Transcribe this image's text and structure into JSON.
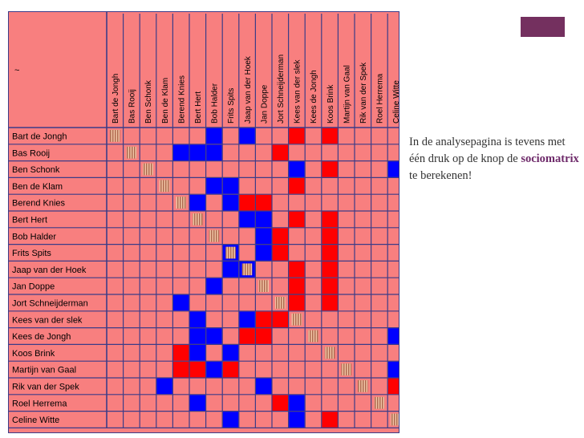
{
  "corner_label": "~",
  "students": [
    "Bart de Jongh",
    "Bas Rooij",
    "Ben Schonk",
    "Ben de Klam",
    "Berend Knies",
    "Bert Hert",
    "Bob Halder",
    "Frits Spits",
    "Jaap van der Hoek",
    "Jan Doppe",
    "Jort Schneijderman",
    "Kees van der slek",
    "Kees de Jongh",
    "Koos Brink",
    "Martijn van Gaal",
    "Rik van der Spek",
    "Roel Herrema",
    "Celine Witte"
  ],
  "legend_colors": {
    "background": "#f87f7f",
    "blue": "#0000ff",
    "red": "#ff0000",
    "grid": "#3c3c88",
    "diagonal": "#b06a50"
  },
  "matrix": {
    "blue": [
      [
        0,
        6
      ],
      [
        0,
        8
      ],
      [
        1,
        4
      ],
      [
        1,
        5
      ],
      [
        1,
        6
      ],
      [
        2,
        11
      ],
      [
        2,
        17
      ],
      [
        3,
        6
      ],
      [
        3,
        7
      ],
      [
        4,
        5
      ],
      [
        4,
        7
      ],
      [
        5,
        8
      ],
      [
        5,
        9
      ],
      [
        6,
        9
      ],
      [
        7,
        7
      ],
      [
        7,
        9
      ],
      [
        8,
        7
      ],
      [
        8,
        8
      ],
      [
        9,
        6
      ],
      [
        10,
        4
      ],
      [
        11,
        5
      ],
      [
        11,
        8
      ],
      [
        12,
        5
      ],
      [
        12,
        6
      ],
      [
        12,
        17
      ],
      [
        13,
        5
      ],
      [
        13,
        7
      ],
      [
        14,
        6
      ],
      [
        14,
        17
      ],
      [
        15,
        3
      ],
      [
        15,
        9
      ],
      [
        16,
        5
      ],
      [
        16,
        11
      ],
      [
        17,
        7
      ],
      [
        17,
        11
      ]
    ],
    "red": [
      [
        0,
        11
      ],
      [
        0,
        13
      ],
      [
        1,
        10
      ],
      [
        2,
        13
      ],
      [
        3,
        11
      ],
      [
        4,
        8
      ],
      [
        4,
        9
      ],
      [
        5,
        11
      ],
      [
        5,
        13
      ],
      [
        6,
        10
      ],
      [
        6,
        13
      ],
      [
        7,
        10
      ],
      [
        7,
        13
      ],
      [
        8,
        11
      ],
      [
        8,
        13
      ],
      [
        9,
        11
      ],
      [
        9,
        13
      ],
      [
        10,
        11
      ],
      [
        10,
        13
      ],
      [
        11,
        9
      ],
      [
        11,
        10
      ],
      [
        12,
        8
      ],
      [
        12,
        9
      ],
      [
        13,
        4
      ],
      [
        14,
        4
      ],
      [
        14,
        5
      ],
      [
        14,
        7
      ],
      [
        15,
        17
      ],
      [
        16,
        10
      ],
      [
        17,
        13
      ]
    ]
  },
  "caption": {
    "before": "In de analysepagina is tevens met één druk op de knop de ",
    "highlight": "sociomatrix",
    "after": " te berekenen!"
  }
}
